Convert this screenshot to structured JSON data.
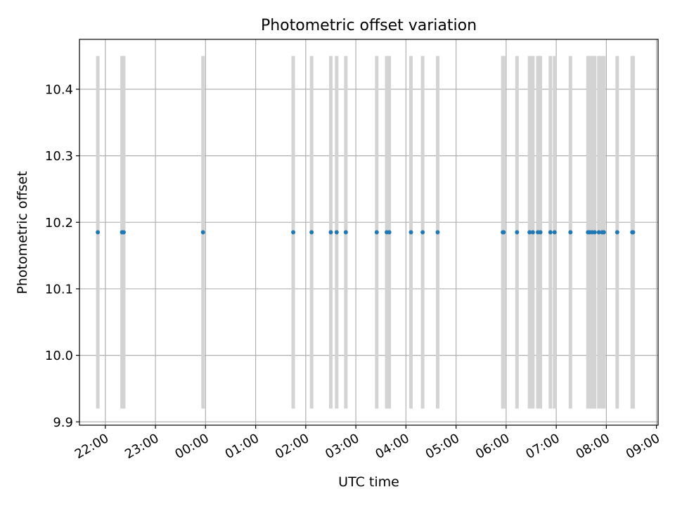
{
  "chart_data": {
    "type": "scatter",
    "title": "Photometric offset variation",
    "xlabel": "UTC time",
    "ylabel": "Photometric offset",
    "x_axis_type": "time",
    "xlim": [
      "21:29",
      "09:02"
    ],
    "ylim": [
      9.895,
      10.475
    ],
    "x_ticks": [
      "22:00",
      "23:00",
      "00:00",
      "01:00",
      "02:00",
      "03:00",
      "04:00",
      "05:00",
      "06:00",
      "07:00",
      "08:00",
      "09:00"
    ],
    "y_ticks": [
      "9.9",
      "10.0",
      "10.1",
      "10.2",
      "10.3",
      "10.4"
    ],
    "grid": true,
    "legend": "none",
    "colors": {
      "points": "#1f77b4",
      "bands": "#d3d3d3",
      "grid": "#b0b0b0"
    },
    "band_range": [
      9.92,
      10.45
    ],
    "points": [
      {
        "x": "21:51",
        "y": 10.185
      },
      {
        "x": "22:20",
        "y": 10.185
      },
      {
        "x": "22:22",
        "y": 10.185
      },
      {
        "x": "23:57",
        "y": 10.185
      },
      {
        "x": "01:45",
        "y": 10.185
      },
      {
        "x": "02:07",
        "y": 10.185
      },
      {
        "x": "02:30",
        "y": 10.185
      },
      {
        "x": "02:37",
        "y": 10.185
      },
      {
        "x": "02:48",
        "y": 10.185
      },
      {
        "x": "03:25",
        "y": 10.185
      },
      {
        "x": "03:37",
        "y": 10.185
      },
      {
        "x": "03:40",
        "y": 10.185
      },
      {
        "x": "04:06",
        "y": 10.185
      },
      {
        "x": "04:20",
        "y": 10.185
      },
      {
        "x": "04:38",
        "y": 10.185
      },
      {
        "x": "05:56",
        "y": 10.185
      },
      {
        "x": "05:57",
        "y": 10.185
      },
      {
        "x": "06:13",
        "y": 10.185
      },
      {
        "x": "06:28",
        "y": 10.185
      },
      {
        "x": "06:32",
        "y": 10.185
      },
      {
        "x": "06:38",
        "y": 10.185
      },
      {
        "x": "06:41",
        "y": 10.185
      },
      {
        "x": "06:53",
        "y": 10.185
      },
      {
        "x": "06:58",
        "y": 10.185
      },
      {
        "x": "07:17",
        "y": 10.185
      },
      {
        "x": "07:38",
        "y": 10.185
      },
      {
        "x": "07:40",
        "y": 10.185
      },
      {
        "x": "07:43",
        "y": 10.185
      },
      {
        "x": "07:46",
        "y": 10.185
      },
      {
        "x": "07:51",
        "y": 10.185
      },
      {
        "x": "07:55",
        "y": 10.185
      },
      {
        "x": "07:57",
        "y": 10.185
      },
      {
        "x": "08:13",
        "y": 10.185
      },
      {
        "x": "08:31",
        "y": 10.185
      },
      {
        "x": "08:32",
        "y": 10.185
      }
    ]
  }
}
